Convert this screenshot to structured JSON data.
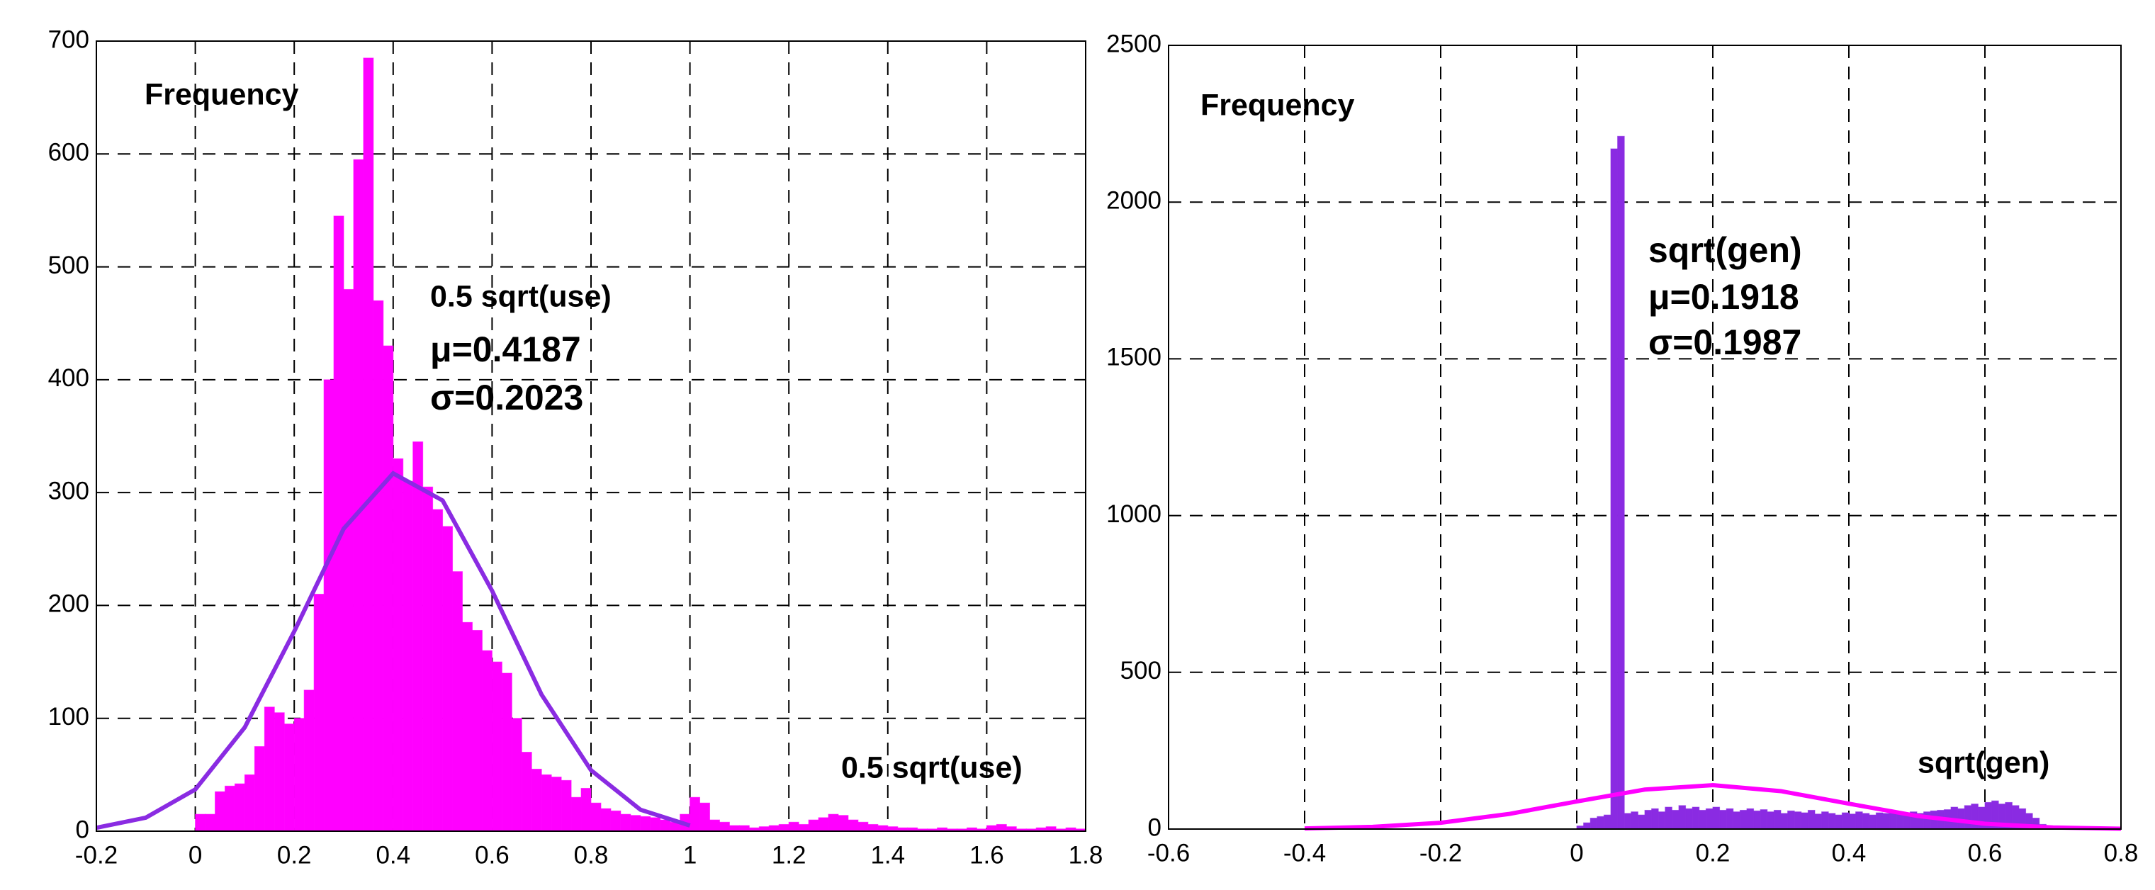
{
  "chart_data": [
    {
      "type": "histogram",
      "ylabel": "Frequency",
      "xlabel": "0.5 sqrt(use)",
      "annotation": [
        "0.5 sqrt(use)",
        "μ=0.4187",
        "σ=0.2023"
      ],
      "color": "#ff00ff",
      "grid": true,
      "xlim": [
        -0.2,
        1.8
      ],
      "xticks": [
        -0.2,
        0,
        0.2,
        0.4,
        0.6,
        0.8,
        1,
        1.2,
        1.4,
        1.6,
        1.8
      ],
      "ylim": [
        0,
        700
      ],
      "yticks": [
        0,
        100,
        200,
        300,
        400,
        500,
        600,
        700
      ],
      "bins": [
        0,
        0.02,
        0.04,
        0.06,
        0.08,
        0.1,
        0.12,
        0.14,
        0.16,
        0.18,
        0.2,
        0.22,
        0.24,
        0.26,
        0.28,
        0.3,
        0.32,
        0.34,
        0.36,
        0.38,
        0.4,
        0.42,
        0.44,
        0.46,
        0.48,
        0.5,
        0.52,
        0.54,
        0.56,
        0.58,
        0.6,
        0.62,
        0.64,
        0.66,
        0.68,
        0.7,
        0.72,
        0.74,
        0.76,
        0.78,
        0.8,
        0.82,
        0.84,
        0.86,
        0.88,
        0.9,
        0.92,
        0.94,
        0.96,
        0.98,
        1,
        1.02,
        1.04,
        1.06,
        1.08,
        1.1,
        1.12,
        1.14,
        1.16,
        1.18,
        1.2,
        1.22,
        1.24,
        1.26,
        1.28,
        1.3,
        1.32,
        1.34,
        1.36,
        1.38,
        1.4,
        1.42,
        1.44,
        1.46,
        1.48,
        1.5,
        1.52,
        1.54,
        1.56,
        1.58,
        1.6,
        1.62,
        1.64,
        1.66,
        1.68,
        1.7,
        1.72,
        1.74,
        1.76,
        1.78,
        1.8
      ],
      "values": [
        15,
        15,
        35,
        40,
        42,
        50,
        75,
        110,
        105,
        95,
        100,
        125,
        210,
        400,
        545,
        480,
        595,
        685,
        470,
        430,
        330,
        310,
        345,
        305,
        285,
        270,
        230,
        185,
        178,
        160,
        150,
        140,
        100,
        70,
        55,
        50,
        48,
        45,
        30,
        38,
        25,
        20,
        18,
        15,
        14,
        13,
        12,
        10,
        8,
        15,
        30,
        25,
        10,
        8,
        5,
        5,
        3,
        4,
        5,
        6,
        8,
        6,
        10,
        12,
        15,
        14,
        10,
        8,
        6,
        5,
        4,
        3,
        3,
        2,
        2,
        3,
        2,
        2,
        3,
        2,
        5,
        6,
        4,
        2,
        2,
        3,
        4,
        2,
        3,
        2
      ],
      "fit": {
        "color": "#8a2be2",
        "x": [
          -0.2,
          -0.1,
          0,
          0.1,
          0.2,
          0.3,
          0.4,
          0.5,
          0.6,
          0.7,
          0.8,
          0.9,
          1.0
        ],
        "values": [
          3,
          12,
          37,
          92,
          177,
          268,
          317,
          293,
          213,
          121,
          54,
          19,
          5
        ]
      }
    },
    {
      "type": "histogram",
      "ylabel": "Frequency",
      "xlabel": "sqrt(gen)",
      "annotation": [
        "sqrt(gen)",
        "μ=0.1918",
        "σ=0.1987"
      ],
      "color": "#8a2be2",
      "grid": true,
      "xlim": [
        -0.6,
        0.8
      ],
      "xticks": [
        -0.6,
        -0.4,
        -0.2,
        0,
        0.2,
        0.4,
        0.6,
        0.8
      ],
      "ylim": [
        0,
        2500
      ],
      "yticks": [
        0,
        500,
        1000,
        1500,
        2000,
        2500
      ],
      "bins": [
        0,
        0.01,
        0.02,
        0.03,
        0.04,
        0.05,
        0.06,
        0.07,
        0.08,
        0.09,
        0.1,
        0.11,
        0.12,
        0.13,
        0.14,
        0.15,
        0.16,
        0.17,
        0.18,
        0.19,
        0.2,
        0.21,
        0.22,
        0.23,
        0.24,
        0.25,
        0.26,
        0.27,
        0.28,
        0.29,
        0.3,
        0.31,
        0.32,
        0.33,
        0.34,
        0.35,
        0.36,
        0.37,
        0.38,
        0.39,
        0.4,
        0.41,
        0.42,
        0.43,
        0.44,
        0.45,
        0.46,
        0.47,
        0.48,
        0.49,
        0.5,
        0.51,
        0.52,
        0.53,
        0.54,
        0.55,
        0.56,
        0.57,
        0.58,
        0.59,
        0.6,
        0.61,
        0.62,
        0.63,
        0.64,
        0.65,
        0.66,
        0.67,
        0.68,
        0.69,
        0.7
      ],
      "values": [
        10,
        20,
        35,
        40,
        45,
        2170,
        2210,
        50,
        55,
        45,
        60,
        65,
        55,
        70,
        60,
        75,
        65,
        70,
        60,
        65,
        70,
        60,
        65,
        55,
        60,
        65,
        58,
        62,
        55,
        60,
        50,
        58,
        55,
        52,
        60,
        48,
        55,
        50,
        45,
        52,
        48,
        55,
        50,
        45,
        52,
        50,
        55,
        48,
        52,
        55,
        50,
        55,
        58,
        60,
        62,
        70,
        65,
        75,
        80,
        70,
        85,
        90,
        80,
        85,
        75,
        65,
        50,
        35,
        15,
        5
      ],
      "fit": {
        "color": "#ff00ff",
        "x": [
          -0.4,
          -0.3,
          -0.2,
          -0.1,
          0,
          0.1,
          0.2,
          0.3,
          0.4,
          0.5,
          0.6,
          0.7,
          0.8
        ],
        "values": [
          2,
          7,
          20,
          48,
          88,
          126,
          140,
          121,
          81,
          42,
          17,
          5,
          1
        ]
      }
    }
  ]
}
